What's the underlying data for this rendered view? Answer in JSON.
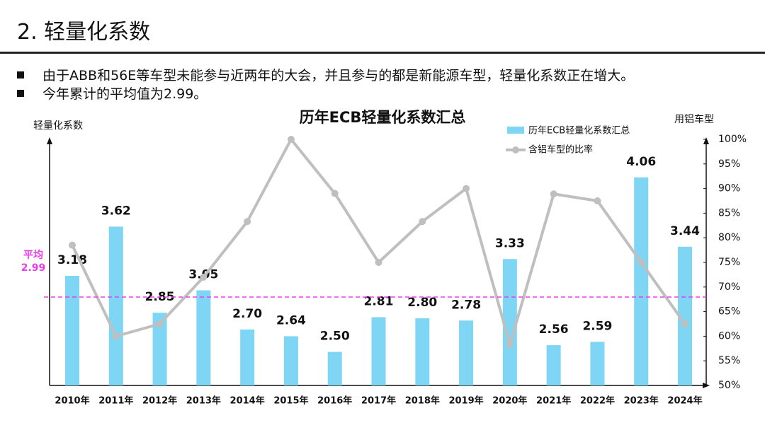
{
  "header": {
    "title": "2. 轻量化系数",
    "bullets": [
      "由于ABB和56E等车型未能参与近两年的大会，并且参与的都是新能源车型，轻量化系数正在增大。",
      "今年累计的平均值为2.99。"
    ]
  },
  "chart_data": {
    "type": "bar",
    "title": "历年ECB轻量化系数汇总",
    "y_label": "轻量化系数",
    "y2_label": "用铝车型",
    "categories": [
      "2010年",
      "2011年",
      "2012年",
      "2013年",
      "2014年",
      "2015年",
      "2016年",
      "2017年",
      "2018年",
      "2019年",
      "2020年",
      "2021年",
      "2022年",
      "2023年",
      "2024年"
    ],
    "series": [
      {
        "name": "历年ECB轻量化系数汇总",
        "type": "bar",
        "color": "#7fd6f4",
        "values": [
          3.18,
          3.62,
          2.85,
          3.05,
          2.7,
          2.64,
          2.5,
          2.81,
          2.8,
          2.78,
          3.33,
          2.56,
          2.59,
          4.06,
          3.44
        ],
        "value_labels": [
          "3.18",
          "3.62",
          "2.85",
          "3.05",
          "2.70",
          "2.64",
          "2.50",
          "2.81",
          "2.80",
          "2.78",
          "3.33",
          "2.56",
          "2.59",
          "4.06",
          "3.44"
        ]
      },
      {
        "name": "含铝车型的比率",
        "type": "line",
        "axis": "y2",
        "color": "#bfbfbf",
        "values": [
          78.5,
          60,
          62.5,
          72,
          83.3,
          100,
          89,
          75,
          83.3,
          90,
          58.3,
          88.9,
          87.5,
          75,
          62.5
        ]
      }
    ],
    "ylim": [
      2.2,
      4.4
    ],
    "y2lim": [
      50,
      100
    ],
    "y2ticks": [
      {
        "value": 50,
        "label": "50%"
      },
      {
        "value": 55,
        "label": "55%"
      },
      {
        "value": 60,
        "label": "60%"
      },
      {
        "value": 65,
        "label": "65%"
      },
      {
        "value": 70,
        "label": "70%"
      },
      {
        "value": 75,
        "label": "75%"
      },
      {
        "value": 80,
        "label": "80%"
      },
      {
        "value": 85,
        "label": "85%"
      },
      {
        "value": 90,
        "label": "90%"
      },
      {
        "value": 95,
        "label": "95%"
      },
      {
        "value": 100,
        "label": "100%"
      }
    ],
    "average": {
      "label": "平均",
      "value": 2.99,
      "color": "#e83ee8"
    }
  }
}
